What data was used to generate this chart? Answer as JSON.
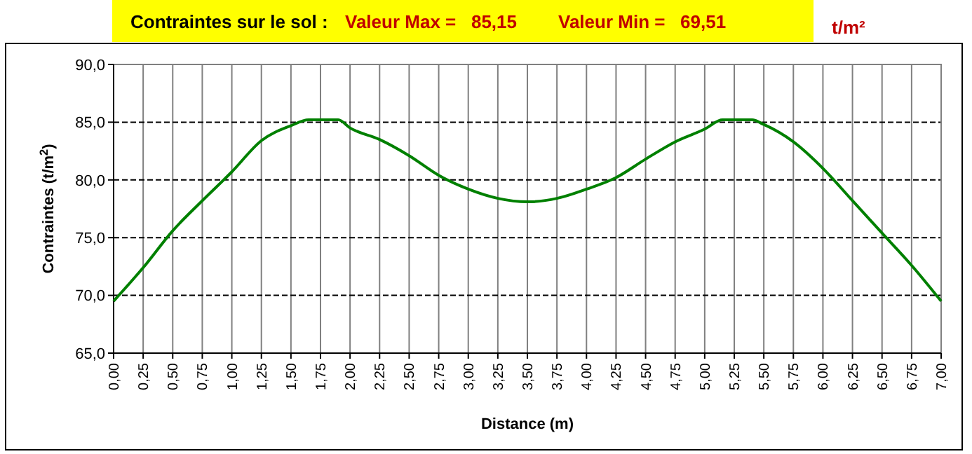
{
  "chart_data": {
    "type": "line",
    "title": "Contraintes sur le sol :",
    "annotations": [
      "Valeur Max =   85,15",
      "Valeur Min =   69,51",
      "t/m²"
    ],
    "xlabel": "Distance (m)",
    "ylabel": "Contraintes (t/m$^{2}$)",
    "x": [
      0,
      0.25,
      0.5,
      0.75,
      1.0,
      1.25,
      1.5,
      1.65,
      1.9,
      2.0,
      2.25,
      2.5,
      2.75,
      3.0,
      3.25,
      3.5,
      3.75,
      4.0,
      4.25,
      4.5,
      4.75,
      5.0,
      5.15,
      5.4,
      5.5,
      5.75,
      6.0,
      6.25,
      6.5,
      6.75,
      7.0
    ],
    "series": [
      {
        "color": "#008000",
        "values": [
          69.5,
          72.4,
          75.6,
          78.2,
          80.7,
          83.4,
          84.7,
          85.2,
          85.2,
          84.5,
          83.5,
          82.1,
          80.4,
          79.2,
          78.4,
          78.1,
          78.4,
          79.2,
          80.2,
          81.8,
          83.3,
          84.4,
          85.2,
          85.2,
          84.8,
          83.3,
          81.0,
          78.2,
          75.4,
          72.6,
          69.5
        ]
      }
    ],
    "xlim": [
      0,
      7
    ],
    "xticks": [
      {
        "value": 0,
        "label": "0,00"
      },
      {
        "value": 0.25,
        "label": "0,25"
      },
      {
        "value": 0.5,
        "label": "0,50"
      },
      {
        "value": 0.75,
        "label": "0,75"
      },
      {
        "value": 1,
        "label": "1,00"
      },
      {
        "value": 1.25,
        "label": "1,25"
      },
      {
        "value": 1.5,
        "label": "1,50"
      },
      {
        "value": 1.75,
        "label": "1,75"
      },
      {
        "value": 2,
        "label": "2,00"
      },
      {
        "value": 2.25,
        "label": "2,25"
      },
      {
        "value": 2.5,
        "label": "2,50"
      },
      {
        "value": 2.75,
        "label": "2,75"
      },
      {
        "value": 3,
        "label": "3,00"
      },
      {
        "value": 3.25,
        "label": "3,25"
      },
      {
        "value": 3.5,
        "label": "3,50"
      },
      {
        "value": 3.75,
        "label": "3,75"
      },
      {
        "value": 4,
        "label": "4,00"
      },
      {
        "value": 4.25,
        "label": "4,25"
      },
      {
        "value": 4.5,
        "label": "4,50"
      },
      {
        "value": 4.75,
        "label": "4,75"
      },
      {
        "value": 5,
        "label": "5,00"
      },
      {
        "value": 5.25,
        "label": "5,25"
      },
      {
        "value": 5.5,
        "label": "5,50"
      },
      {
        "value": 5.75,
        "label": "5,75"
      },
      {
        "value": 6,
        "label": "6,00"
      },
      {
        "value": 6.25,
        "label": "6,25"
      },
      {
        "value": 6.5,
        "label": "6,50"
      },
      {
        "value": 6.75,
        "label": "6,75"
      },
      {
        "value": 7,
        "label": "7,00"
      }
    ],
    "ylim": [
      65,
      90
    ],
    "yticks": [
      {
        "value": 65,
        "label": "65,0"
      },
      {
        "value": 70,
        "label": "70,0"
      },
      {
        "value": 75,
        "label": "75,0"
      },
      {
        "value": 80,
        "label": "80,0"
      },
      {
        "value": 85,
        "label": "85,0"
      },
      {
        "value": 90,
        "label": "90,0"
      }
    ],
    "grid": true,
    "marker": "none",
    "line_style": "solid"
  }
}
